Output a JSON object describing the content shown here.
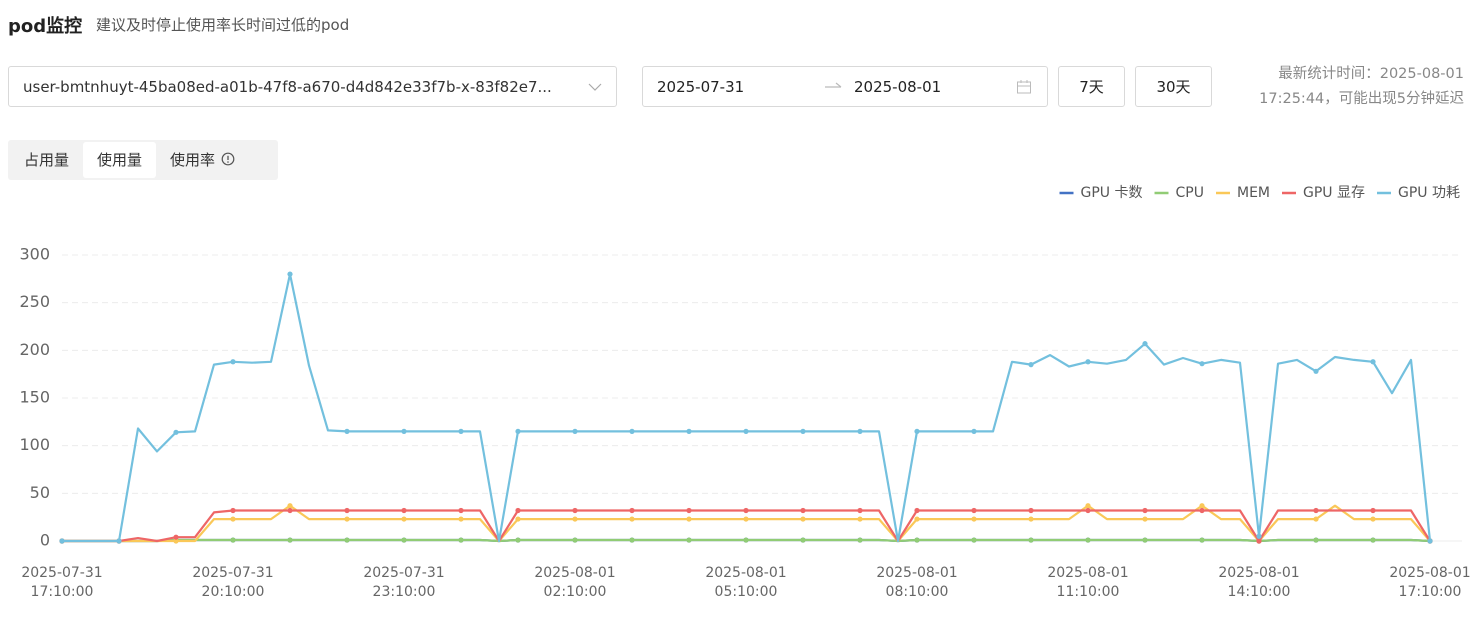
{
  "header": {
    "title": "pod监控",
    "subtitle": "建议及时停止使用率长时间过低的pod"
  },
  "filters": {
    "pod": "user-bmtnhuyt-45ba08ed-a01b-47f8-a670-d4d842e33f7b-x-83f82e7...",
    "start_date": "2025-07-31",
    "end_date": "2025-08-01",
    "buttons": [
      "7天",
      "30天"
    ],
    "update_note": "最新统计时间：2025-08-01 17:25:44，可能出现5分钟延迟"
  },
  "tabs": {
    "items": [
      "占用量",
      "使用量",
      "使用率"
    ],
    "selected": 1
  },
  "chart_data": {
    "type": "line",
    "legend": "top-right",
    "grid": true,
    "x": [
      "2025-07-31 17:10:00",
      "2025-07-31 17:30:00",
      "2025-07-31 17:50:00",
      "2025-07-31 18:10:00",
      "2025-07-31 18:30:00",
      "2025-07-31 18:50:00",
      "2025-07-31 19:10:00",
      "2025-07-31 19:30:00",
      "2025-07-31 19:50:00",
      "2025-07-31 20:10:00",
      "2025-07-31 20:30:00",
      "2025-07-31 20:50:00",
      "2025-07-31 21:10:00",
      "2025-07-31 21:30:00",
      "2025-07-31 21:50:00",
      "2025-07-31 22:10:00",
      "2025-07-31 22:30:00",
      "2025-07-31 22:50:00",
      "2025-07-31 23:10:00",
      "2025-07-31 23:30:00",
      "2025-07-31 23:50:00",
      "2025-08-01 00:10:00",
      "2025-08-01 00:30:00",
      "2025-08-01 00:50:00",
      "2025-08-01 01:10:00",
      "2025-08-01 01:30:00",
      "2025-08-01 01:50:00",
      "2025-08-01 02:10:00",
      "2025-08-01 02:30:00",
      "2025-08-01 02:50:00",
      "2025-08-01 03:10:00",
      "2025-08-01 03:30:00",
      "2025-08-01 03:50:00",
      "2025-08-01 04:10:00",
      "2025-08-01 04:30:00",
      "2025-08-01 04:50:00",
      "2025-08-01 05:10:00",
      "2025-08-01 05:30:00",
      "2025-08-01 05:50:00",
      "2025-08-01 06:10:00",
      "2025-08-01 06:30:00",
      "2025-08-01 06:50:00",
      "2025-08-01 07:10:00",
      "2025-08-01 07:30:00",
      "2025-08-01 07:50:00",
      "2025-08-01 08:10:00",
      "2025-08-01 08:30:00",
      "2025-08-01 08:50:00",
      "2025-08-01 09:10:00",
      "2025-08-01 09:30:00",
      "2025-08-01 09:50:00",
      "2025-08-01 10:10:00",
      "2025-08-01 10:30:00",
      "2025-08-01 10:50:00",
      "2025-08-01 11:10:00",
      "2025-08-01 11:30:00",
      "2025-08-01 11:50:00",
      "2025-08-01 12:10:00",
      "2025-08-01 12:30:00",
      "2025-08-01 12:50:00",
      "2025-08-01 13:10:00",
      "2025-08-01 13:30:00",
      "2025-08-01 13:50:00",
      "2025-08-01 14:10:00",
      "2025-08-01 14:30:00",
      "2025-08-01 14:50:00",
      "2025-08-01 15:10:00",
      "2025-08-01 15:30:00",
      "2025-08-01 15:50:00",
      "2025-08-01 16:10:00",
      "2025-08-01 16:30:00",
      "2025-08-01 16:50:00",
      "2025-08-01 17:10:00"
    ],
    "xticks": [
      "2025-07-31 17:10:00",
      "2025-07-31 20:10:00",
      "2025-07-31 23:10:00",
      "2025-08-01 02:10:00",
      "2025-08-01 05:10:00",
      "2025-08-01 08:10:00",
      "2025-08-01 11:10:00",
      "2025-08-01 14:10:00",
      "2025-08-01 17:10:00"
    ],
    "ylim": [
      0,
      300
    ],
    "yticks": [
      0,
      50,
      100,
      150,
      200,
      250,
      300
    ],
    "series": [
      {
        "name": "GPU 卡数",
        "color": "#4372c4",
        "values": [
          0,
          0,
          0,
          0,
          0,
          0,
          1,
          1,
          1,
          1,
          1,
          1,
          1,
          1,
          1,
          1,
          1,
          1,
          1,
          1,
          1,
          1,
          1,
          0,
          1,
          1,
          1,
          1,
          1,
          1,
          1,
          1,
          1,
          1,
          1,
          1,
          1,
          1,
          1,
          1,
          1,
          1,
          1,
          1,
          0,
          1,
          1,
          1,
          1,
          1,
          1,
          1,
          1,
          1,
          1,
          1,
          1,
          1,
          1,
          1,
          1,
          1,
          1,
          0,
          1,
          1,
          1,
          1,
          1,
          1,
          1,
          1,
          0
        ]
      },
      {
        "name": "CPU",
        "color": "#91cc75",
        "values": [
          0,
          0,
          0,
          0,
          0,
          0,
          1,
          1,
          1,
          1,
          1,
          1,
          1,
          1,
          1,
          1,
          1,
          1,
          1,
          1,
          1,
          1,
          1,
          0,
          1,
          1,
          1,
          1,
          1,
          1,
          1,
          1,
          1,
          1,
          1,
          1,
          1,
          1,
          1,
          1,
          1,
          1,
          1,
          1,
          0,
          1,
          1,
          1,
          1,
          1,
          1,
          1,
          1,
          1,
          1,
          1,
          1,
          1,
          1,
          1,
          1,
          1,
          1,
          0,
          1,
          1,
          1,
          1,
          1,
          1,
          1,
          1,
          0
        ]
      },
      {
        "name": "MEM",
        "color": "#fac858",
        "values": [
          0,
          0,
          0,
          0,
          0,
          0,
          0,
          0,
          23,
          23,
          23,
          23,
          37,
          23,
          23,
          23,
          23,
          23,
          23,
          23,
          23,
          23,
          23,
          0,
          23,
          23,
          23,
          23,
          23,
          23,
          23,
          23,
          23,
          23,
          23,
          23,
          23,
          23,
          23,
          23,
          23,
          23,
          23,
          23,
          0,
          23,
          23,
          23,
          23,
          23,
          23,
          23,
          23,
          23,
          37,
          23,
          23,
          23,
          23,
          23,
          37,
          23,
          23,
          0,
          23,
          23,
          23,
          37,
          23,
          23,
          23,
          23,
          0
        ]
      },
      {
        "name": "GPU 显存",
        "color": "#ee6666",
        "values": [
          0,
          0,
          0,
          0,
          3,
          0,
          4,
          4,
          30,
          32,
          32,
          32,
          32,
          32,
          32,
          32,
          32,
          32,
          32,
          32,
          32,
          32,
          32,
          0,
          32,
          32,
          32,
          32,
          32,
          32,
          32,
          32,
          32,
          32,
          32,
          32,
          32,
          32,
          32,
          32,
          32,
          32,
          32,
          32,
          0,
          32,
          32,
          32,
          32,
          32,
          32,
          32,
          32,
          32,
          32,
          32,
          32,
          32,
          32,
          32,
          32,
          32,
          32,
          0,
          32,
          32,
          32,
          32,
          32,
          32,
          32,
          32,
          0
        ]
      },
      {
        "name": "GPU 功耗",
        "color": "#73c0de",
        "values": [
          0,
          0,
          0,
          0,
          118,
          94,
          114,
          115,
          185,
          188,
          187,
          188,
          280,
          184,
          116,
          115,
          115,
          115,
          115,
          115,
          115,
          115,
          115,
          0,
          115,
          115,
          115,
          115,
          115,
          115,
          115,
          115,
          115,
          115,
          115,
          115,
          115,
          115,
          115,
          115,
          115,
          115,
          115,
          115,
          0,
          115,
          115,
          115,
          115,
          115,
          188,
          185,
          195,
          183,
          188,
          186,
          190,
          207,
          185,
          192,
          186,
          190,
          187,
          5,
          186,
          190,
          178,
          193,
          190,
          188,
          155,
          190,
          0
        ]
      }
    ]
  }
}
